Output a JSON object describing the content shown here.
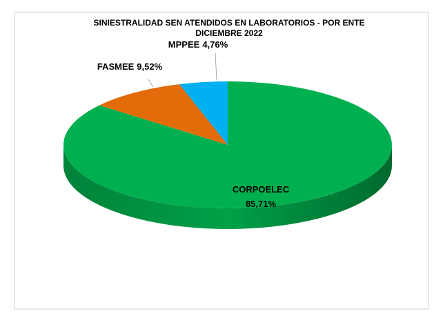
{
  "chart_data": {
    "type": "pie",
    "title": [
      "SINIESTRALIDAD SEN ATENDIDOS EN LABORATORIOS - POR ENTE",
      "DICIEMBRE 2022"
    ],
    "categories": [
      "CORPOELEC",
      "FASMEE",
      "MPPEE"
    ],
    "values": [
      85.71,
      9.52,
      4.76
    ],
    "value_labels": [
      "85,71%",
      "9,52%",
      "4,76%"
    ],
    "colors": [
      "#00b050",
      "#e36c0a",
      "#00b0f0"
    ]
  }
}
